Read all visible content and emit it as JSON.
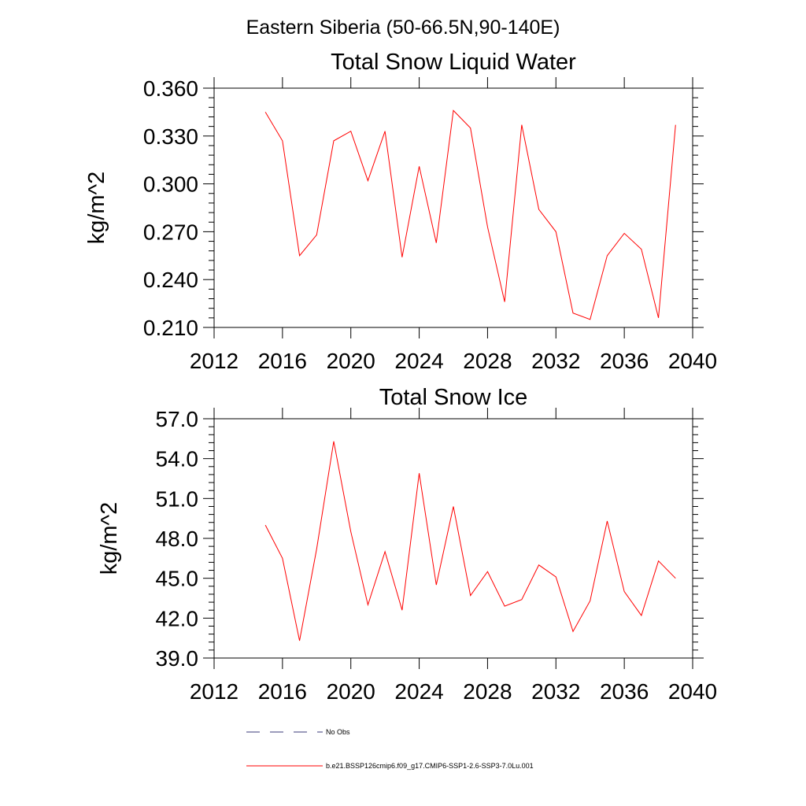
{
  "figure": {
    "title": "Eastern Siberia (50-66.5N,90-140E)"
  },
  "legend": {
    "items": [
      {
        "label": "No Obs",
        "color": "#3a3a7a",
        "style": "dashed"
      },
      {
        "label": "b.e21.BSSP126cmip6.f09_g17.CMIP6-SSP1-2.6-SSP3-7.0Lu.001",
        "color": "#ff0000",
        "style": "solid"
      }
    ]
  },
  "chart_data": [
    {
      "type": "line",
      "title": "Total Snow Liquid Water",
      "xlabel": "",
      "ylabel": "kg/m^2",
      "xlim": [
        2012,
        2040
      ],
      "ylim": [
        0.21,
        0.36
      ],
      "xticks": [
        2012,
        2016,
        2020,
        2024,
        2028,
        2032,
        2036,
        2040
      ],
      "xtick_labels": [
        "2012",
        "2016",
        "2020",
        "2024",
        "2028",
        "2032",
        "2036",
        "2040"
      ],
      "yticks": [
        0.21,
        0.24,
        0.27,
        0.3,
        0.33,
        0.36
      ],
      "ytick_labels": [
        "0.210",
        "0.240",
        "0.270",
        "0.300",
        "0.330",
        "0.360"
      ],
      "grid": false,
      "series": [
        {
          "color": "#ff0000",
          "x": [
            2015,
            2016,
            2017,
            2018,
            2019,
            2020,
            2021,
            2022,
            2023,
            2024,
            2025,
            2026,
            2027,
            2028,
            2029,
            2030,
            2031,
            2032,
            2033,
            2034,
            2035,
            2036,
            2037,
            2038,
            2039
          ],
          "y": [
            0.345,
            0.327,
            0.255,
            0.268,
            0.327,
            0.333,
            0.302,
            0.333,
            0.254,
            0.311,
            0.263,
            0.346,
            0.335,
            0.273,
            0.226,
            0.337,
            0.284,
            0.27,
            0.219,
            0.215,
            0.255,
            0.269,
            0.259,
            0.216,
            0.337
          ]
        }
      ]
    },
    {
      "type": "line",
      "title": "Total Snow Ice",
      "xlabel": "",
      "ylabel": "kg/m^2",
      "xlim": [
        2012,
        2040
      ],
      "ylim": [
        39.0,
        57.0
      ],
      "xticks": [
        2012,
        2016,
        2020,
        2024,
        2028,
        2032,
        2036,
        2040
      ],
      "xtick_labels": [
        "2012",
        "2016",
        "2020",
        "2024",
        "2028",
        "2032",
        "2036",
        "2040"
      ],
      "yticks": [
        39.0,
        42.0,
        45.0,
        48.0,
        51.0,
        54.0,
        57.0
      ],
      "ytick_labels": [
        "39.0",
        "42.0",
        "45.0",
        "48.0",
        "51.0",
        "54.0",
        "57.0"
      ],
      "grid": false,
      "series": [
        {
          "color": "#ff0000",
          "x": [
            2015,
            2016,
            2017,
            2018,
            2019,
            2020,
            2021,
            2022,
            2023,
            2024,
            2025,
            2026,
            2027,
            2028,
            2029,
            2030,
            2031,
            2032,
            2033,
            2034,
            2035,
            2036,
            2037,
            2038,
            2039
          ],
          "y": [
            49.0,
            46.5,
            40.3,
            47.2,
            55.3,
            48.5,
            43.0,
            47.0,
            42.6,
            52.9,
            44.5,
            50.4,
            43.7,
            45.5,
            42.9,
            43.4,
            46.0,
            45.1,
            41.0,
            43.3,
            49.3,
            44.0,
            42.2,
            46.3,
            45.0
          ]
        }
      ]
    }
  ]
}
